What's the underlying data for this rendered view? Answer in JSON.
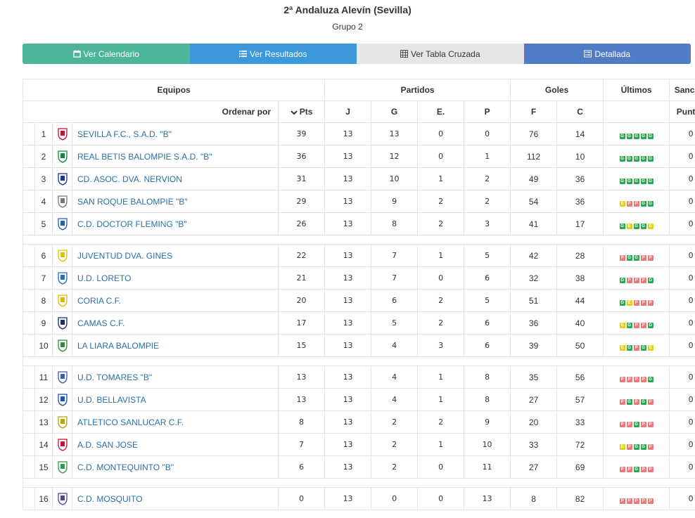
{
  "header": {
    "title": "2ª Andaluza Alevín (Sevilla)",
    "subtitle": "Grupo 2"
  },
  "buttons": {
    "calendar": "Ver Calendario",
    "results": "Ver Resultados",
    "crosstable": "Ver Tabla Cruzada",
    "detailed": "Detallada"
  },
  "table": {
    "group_headers": {
      "equipos": "Equipos",
      "partidos": "Partidos",
      "goles": "Goles",
      "ultimos": "Últimos",
      "sancion": "Sanción"
    },
    "sub_headers": {
      "order_by": "Ordenar por",
      "pts": "Pts",
      "j": "J",
      "g": "G",
      "e": "E.",
      "p": "P",
      "f": "F",
      "c": "C",
      "puntos": "Puntos"
    },
    "colors": {
      "link": "#2a6fa8",
      "form_g": "#2ea84e",
      "form_e": "#e0d21a",
      "form_p": "#e87a7a"
    },
    "rows": [
      {
        "pos": "1",
        "team": "SEVILLA F.C., S.A.D. \"B\"",
        "crest": "sevilla-crest-icon",
        "pts": "39",
        "j": "13",
        "g": "13",
        "e": "0",
        "p": "0",
        "f": "76",
        "c": "14",
        "form": [
          "G",
          "G",
          "G",
          "G",
          "G"
        ],
        "sancion": "0"
      },
      {
        "pos": "2",
        "team": "REAL BETIS BALOMPIE S.A.D. \"B\"",
        "crest": "betis-crest-icon",
        "pts": "36",
        "j": "13",
        "g": "12",
        "e": "0",
        "p": "1",
        "f": "112",
        "c": "10",
        "form": [
          "G",
          "G",
          "G",
          "G",
          "G"
        ],
        "sancion": "0"
      },
      {
        "pos": "3",
        "team": "CD. ASOC. DVA. NERVION",
        "crest": "nervion-crest-icon",
        "pts": "31",
        "j": "13",
        "g": "10",
        "e": "1",
        "p": "2",
        "f": "49",
        "c": "36",
        "form": [
          "G",
          "G",
          "G",
          "G",
          "G"
        ],
        "sancion": "0"
      },
      {
        "pos": "4",
        "team": "SAN ROQUE BALOMPIE \"B\"",
        "crest": "san-roque-crest-icon",
        "pts": "29",
        "j": "13",
        "g": "9",
        "e": "2",
        "p": "2",
        "f": "54",
        "c": "36",
        "form": [
          "E",
          "P",
          "P",
          "G",
          "G"
        ],
        "sancion": "0"
      },
      {
        "pos": "5",
        "team": "C.D. DOCTOR FLEMING \"B\"",
        "crest": "doctor-fleming-crest-icon",
        "pts": "26",
        "j": "13",
        "g": "8",
        "e": "2",
        "p": "3",
        "f": "41",
        "c": "17",
        "form": [
          "G",
          "E",
          "G",
          "G",
          "E"
        ],
        "sancion": "0"
      },
      {
        "separator": true
      },
      {
        "pos": "6",
        "team": "JUVENTUD DVA. GINES",
        "crest": "gines-crest-icon",
        "pts": "22",
        "j": "13",
        "g": "7",
        "e": "1",
        "p": "5",
        "f": "42",
        "c": "28",
        "form": [
          "P",
          "G",
          "G",
          "P",
          "P"
        ],
        "sancion": "0"
      },
      {
        "pos": "7",
        "team": "U.D. LORETO",
        "crest": "loreto-crest-icon",
        "pts": "21",
        "j": "13",
        "g": "7",
        "e": "0",
        "p": "6",
        "f": "32",
        "c": "38",
        "form": [
          "G",
          "P",
          "P",
          "P",
          "G"
        ],
        "sancion": "0"
      },
      {
        "pos": "8",
        "team": "CORIA C.F.",
        "crest": "coria-crest-icon",
        "pts": "20",
        "j": "13",
        "g": "6",
        "e": "2",
        "p": "5",
        "f": "51",
        "c": "44",
        "form": [
          "G",
          "E",
          "P",
          "P",
          "P"
        ],
        "sancion": "0"
      },
      {
        "pos": "9",
        "team": "CAMAS C.F.",
        "crest": "camas-crest-icon",
        "pts": "17",
        "j": "13",
        "g": "5",
        "e": "2",
        "p": "6",
        "f": "36",
        "c": "40",
        "form": [
          "E",
          "G",
          "P",
          "P",
          "G"
        ],
        "sancion": "0"
      },
      {
        "pos": "10",
        "team": "LA LIARA BALOMPIE",
        "crest": "la-liara-crest-icon",
        "pts": "15",
        "j": "13",
        "g": "4",
        "e": "3",
        "p": "6",
        "f": "39",
        "c": "50",
        "form": [
          "E",
          "G",
          "P",
          "G",
          "E"
        ],
        "sancion": "0"
      },
      {
        "separator": true
      },
      {
        "pos": "11",
        "team": "U.D. TOMARES \"B\"",
        "crest": "tomares-crest-icon",
        "pts": "13",
        "j": "13",
        "g": "4",
        "e": "1",
        "p": "8",
        "f": "35",
        "c": "56",
        "form": [
          "P",
          "P",
          "P",
          "P",
          "G"
        ],
        "sancion": "0"
      },
      {
        "pos": "12",
        "team": "U.D. BELLAVISTA",
        "crest": "bellavista-crest-icon",
        "pts": "13",
        "j": "13",
        "g": "4",
        "e": "1",
        "p": "8",
        "f": "27",
        "c": "57",
        "form": [
          "P",
          "G",
          "P",
          "G",
          "P"
        ],
        "sancion": "0"
      },
      {
        "pos": "13",
        "team": "ATLETICO SANLUCAR C.F.",
        "crest": "sanlucar-crest-icon",
        "pts": "8",
        "j": "13",
        "g": "2",
        "e": "2",
        "p": "9",
        "f": "20",
        "c": "33",
        "form": [
          "P",
          "P",
          "G",
          "P",
          "P"
        ],
        "sancion": "0"
      },
      {
        "pos": "14",
        "team": "A.D. SAN JOSE",
        "crest": "san-jose-crest-icon",
        "pts": "7",
        "j": "13",
        "g": "2",
        "e": "1",
        "p": "10",
        "f": "33",
        "c": "72",
        "form": [
          "E",
          "P",
          "G",
          "G",
          "P"
        ],
        "sancion": "0"
      },
      {
        "pos": "15",
        "team": "C.D. MONTEQUINTO \"B\"",
        "crest": "montequinto-crest-icon",
        "pts": "6",
        "j": "13",
        "g": "2",
        "e": "0",
        "p": "11",
        "f": "27",
        "c": "69",
        "form": [
          "P",
          "P",
          "G",
          "P",
          "P"
        ],
        "sancion": "0"
      },
      {
        "separator": true
      },
      {
        "pos": "16",
        "team": "C.D. MOSQUITO",
        "crest": "mosquito-crest-icon",
        "pts": "0",
        "j": "13",
        "g": "0",
        "e": "0",
        "p": "13",
        "f": "8",
        "c": "82",
        "form": [
          "P",
          "P",
          "P",
          "P",
          "P"
        ],
        "sancion": "0"
      }
    ]
  }
}
